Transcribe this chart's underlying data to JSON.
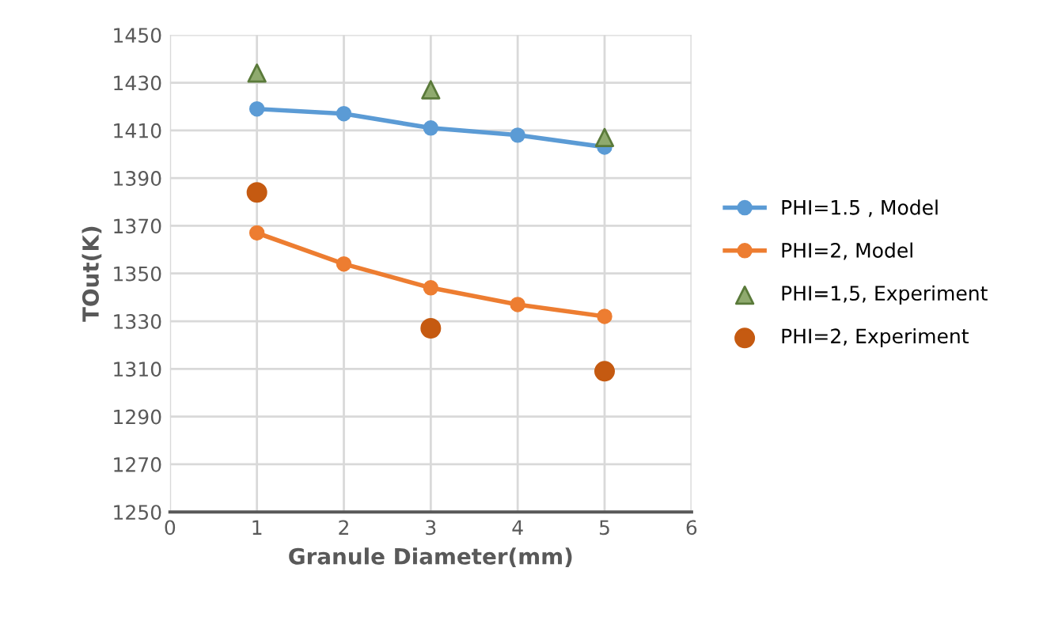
{
  "chart_data": {
    "type": "line",
    "xlabel": "Granule Diameter(mm)",
    "ylabel": "TOut(K)",
    "xlim": [
      0,
      6
    ],
    "xticks": [
      0,
      1,
      2,
      3,
      4,
      5,
      6
    ],
    "ylim": [
      1250,
      1450
    ],
    "yticks": [
      1250,
      1270,
      1290,
      1310,
      1330,
      1350,
      1370,
      1390,
      1410,
      1430,
      1450
    ],
    "grid": true,
    "legend": "right",
    "marker": "circle",
    "line_style": "solid",
    "series": [
      {
        "name": "PHI=1.5 , Model",
        "color": "#5b9bd5",
        "x": [
          1,
          2,
          3,
          4,
          5
        ],
        "values": [
          1419,
          1417,
          1411,
          1408,
          1403
        ]
      },
      {
        "name": "PHI=2, Model",
        "color": "#ed7d31",
        "x": [
          1,
          2,
          3,
          4,
          5
        ],
        "values": [
          1367,
          1354,
          1344,
          1337,
          1332
        ]
      },
      {
        "name": "PHI=1,5, Experiment",
        "color": "#8faa6e",
        "type": "scatter",
        "marker": "triangle",
        "x": [
          1,
          3,
          5
        ],
        "values": [
          1434,
          1427,
          1407
        ]
      },
      {
        "name": "PHI=2, Experiment",
        "color": "#c55a11",
        "type": "scatter",
        "marker": "circle",
        "x": [
          1,
          3,
          5
        ],
        "values": [
          1384,
          1327,
          1309
        ]
      }
    ]
  }
}
